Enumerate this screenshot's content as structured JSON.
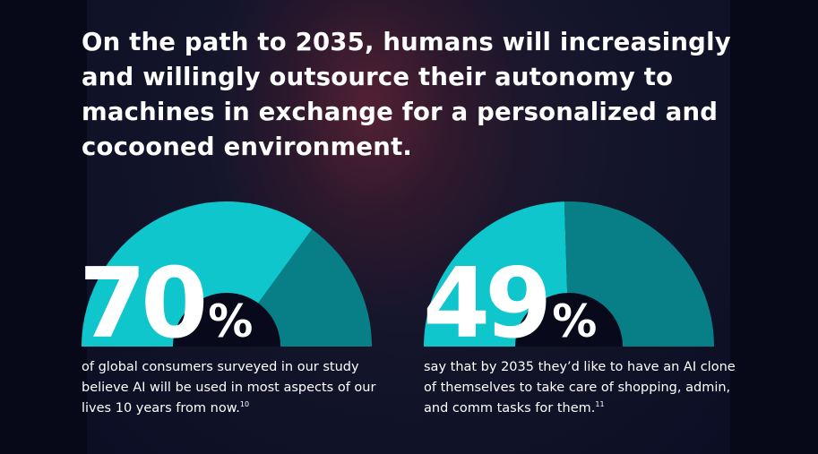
{
  "headline": "On the path to 2035, humans will increasingly and willingly outsource their autonomy to machines in exchange for a personalized and cocooned environment.",
  "colors": {
    "accent_light": "#0fc6cc",
    "accent_dark": "#087e86",
    "background": "#080a1c",
    "text": "#ffffff"
  },
  "stats": [
    {
      "value": 70,
      "number": "70",
      "percent_sign": "%",
      "caption": "of global consumers surveyed in our study believe AI will be used in most aspects of our lives 10 years from now.",
      "footnote": "10"
    },
    {
      "value": 49,
      "number": "49",
      "percent_sign": "%",
      "caption": "say that by 2035 they’d like to have an AI clone of themselves to take care of shopping, admin, and comm tasks for them.",
      "footnote": "11"
    }
  ]
}
